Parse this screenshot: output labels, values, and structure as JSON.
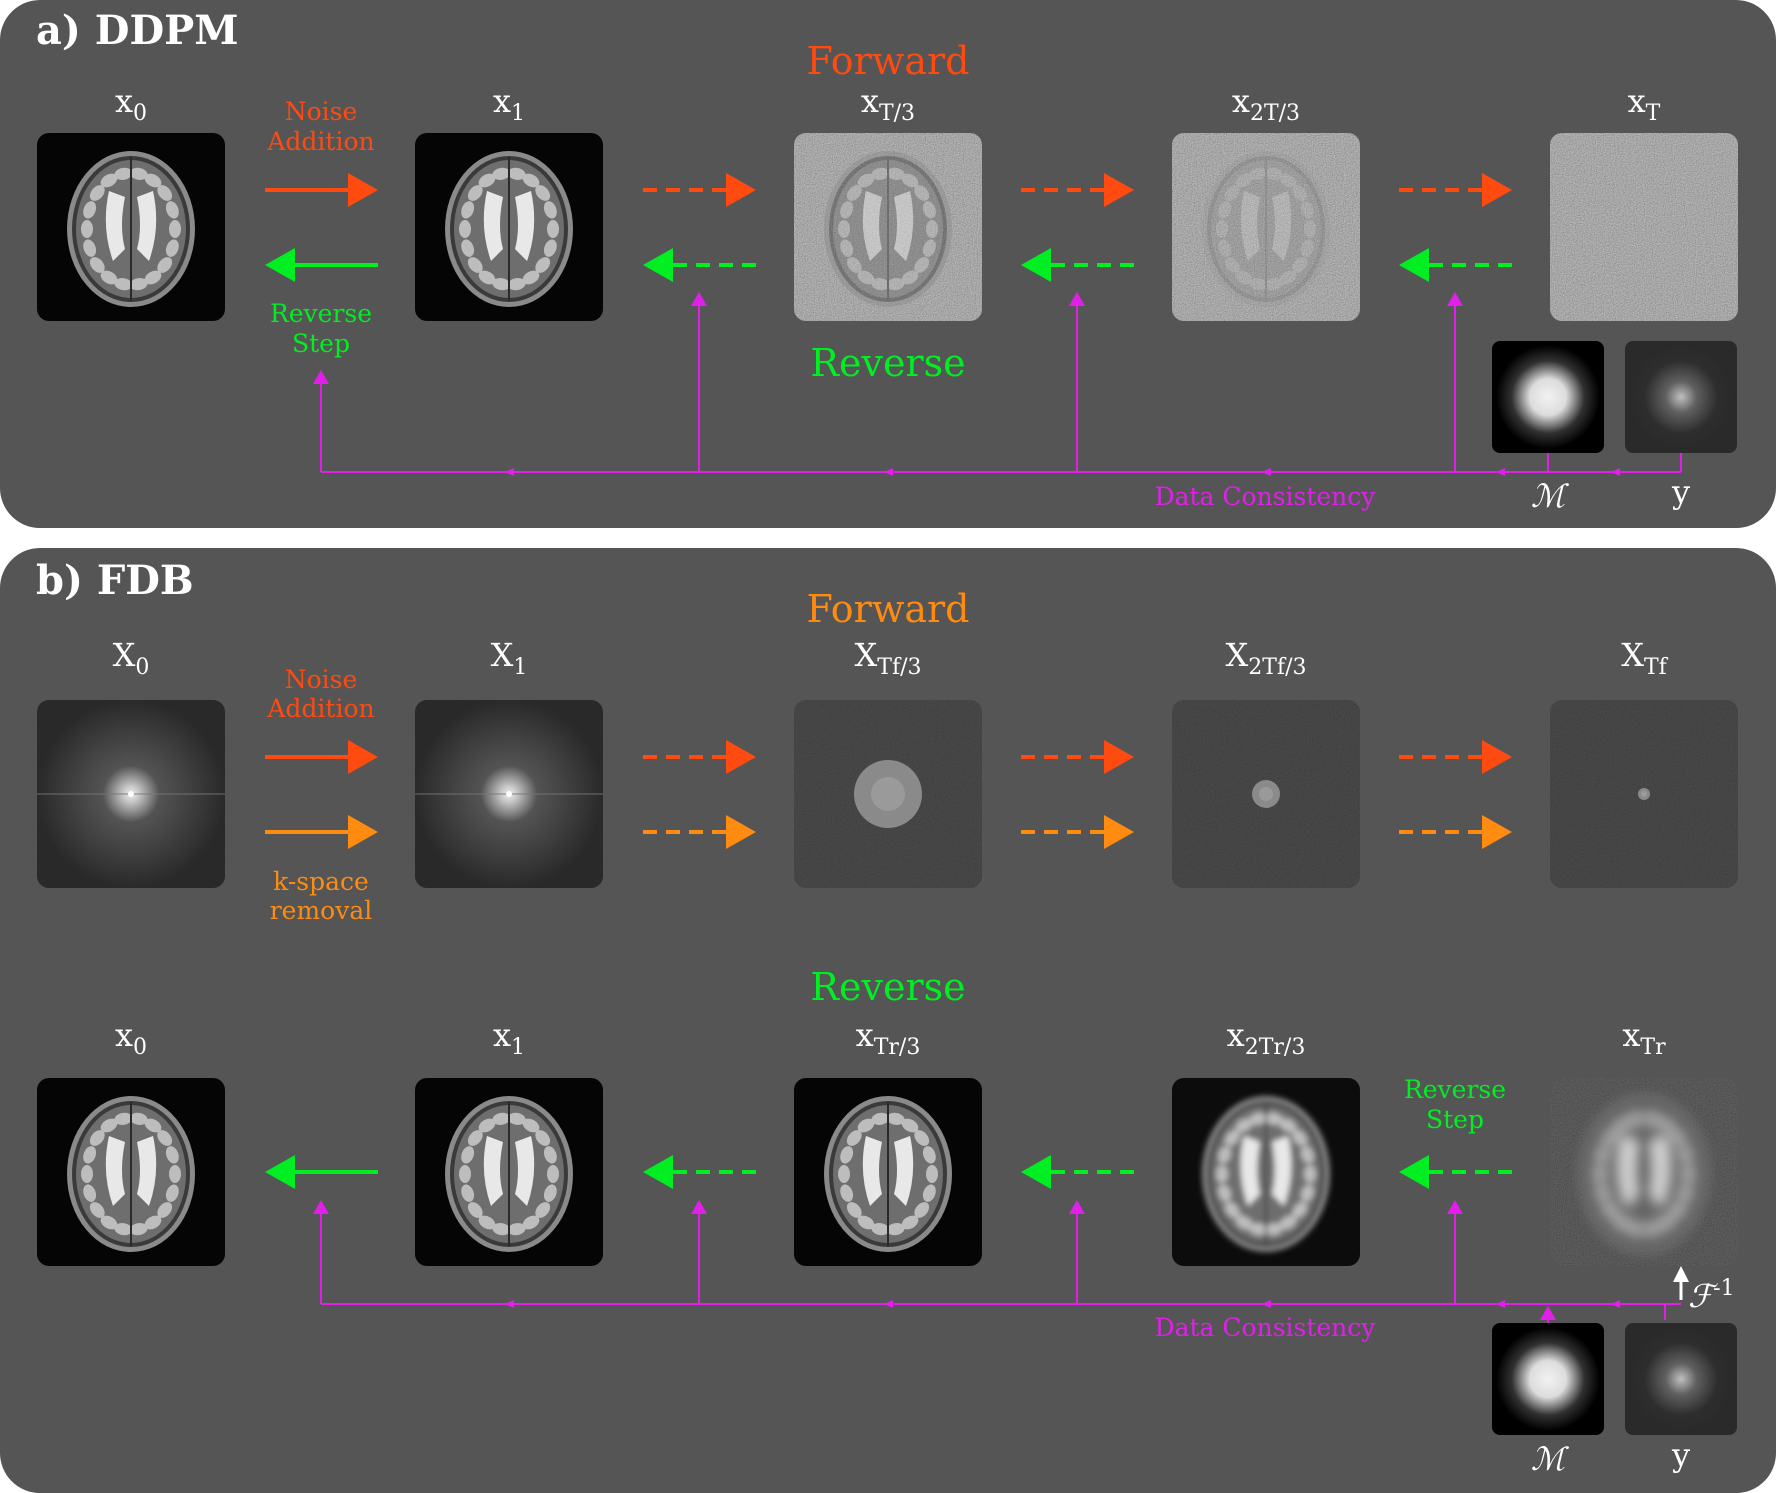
{
  "colors": {
    "panel_bg": "#555555",
    "forward": "#ff4a10",
    "reverse": "#00ee22",
    "kspace": "#ff8c10",
    "dc": "#e020e8"
  },
  "ddpm": {
    "title": "a) DDPM",
    "forward_label": "Forward",
    "reverse_label": "Reverse",
    "noise_label": [
      "Noise",
      "Addition"
    ],
    "reverse_step_label": [
      "Reverse",
      "Step"
    ],
    "data_consistency": "Data Consistency",
    "mask_symbol": "ℳ",
    "meas_symbol": "y",
    "nodes": [
      {
        "base": "x",
        "sub": "0",
        "image": "mri-brain"
      },
      {
        "base": "x",
        "sub": "1",
        "image": "mri-brain"
      },
      {
        "base": "x",
        "sub": "T/3",
        "image": "noisy-brain"
      },
      {
        "base": "x",
        "sub": "2T/3",
        "image": "very-noisy-brain"
      },
      {
        "base": "x",
        "sub": "T",
        "image": "pure-noise"
      }
    ]
  },
  "fdb": {
    "title": "b) FDB",
    "forward_label": "Forward",
    "reverse_label": "Reverse",
    "noise_label": [
      "Noise",
      "Addition"
    ],
    "kspace_label": [
      "k-space",
      "removal"
    ],
    "reverse_step_label": [
      "Reverse",
      "Step"
    ],
    "data_consistency": "Data Consistency",
    "mask_symbol": "ℳ",
    "meas_symbol": "y",
    "ifft_symbol": "ℱ",
    "ifft_sup": "-1",
    "forward_nodes": [
      {
        "base": "X",
        "sub": "0",
        "image": "kspace-full"
      },
      {
        "base": "X",
        "sub": "1",
        "image": "kspace-full"
      },
      {
        "base": "X",
        "sub": "Tf/3",
        "image": "kspace-large-disc"
      },
      {
        "base": "X",
        "sub": "2Tf/3",
        "image": "kspace-medium-disc"
      },
      {
        "base": "X",
        "sub": "Tf",
        "image": "kspace-small-disc"
      }
    ],
    "reverse_nodes": [
      {
        "base": "x",
        "sub": "0",
        "image": "mri-brain"
      },
      {
        "base": "x",
        "sub": "1",
        "image": "mri-brain"
      },
      {
        "base": "x",
        "sub": "Tr/3",
        "image": "smooth-brain"
      },
      {
        "base": "x",
        "sub": "2Tr/3",
        "image": "blurry-brain"
      },
      {
        "base": "x",
        "sub": "Tr",
        "image": "very-blurry-brain"
      }
    ]
  }
}
